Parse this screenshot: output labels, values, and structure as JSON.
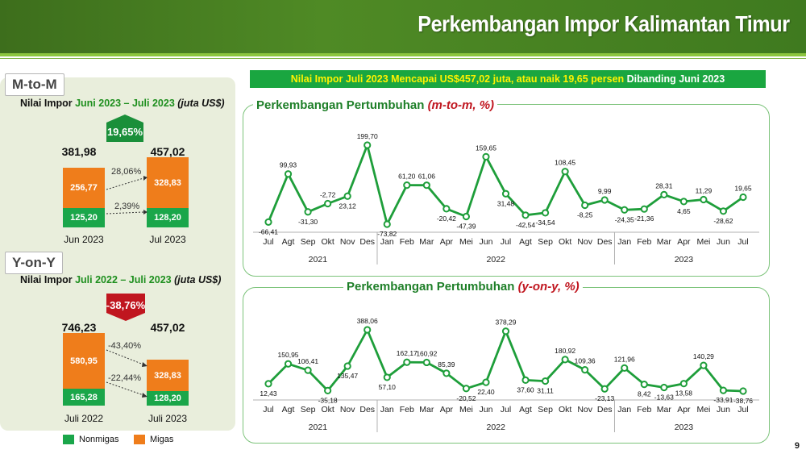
{
  "header": {
    "title": "Perkembangan Impor Kalimantan Timur"
  },
  "banner": {
    "part1": "Nilai Impor Juli 2023 Mencapai US$457,02 juta, atau naik 19,65 persen",
    "part2": " Dibanding Juni 2023"
  },
  "mtom": {
    "tag": "M-to-M",
    "subtitle_prefix": "Nilai Impor ",
    "subtitle_period": "Juni 2023 – Juli 2023",
    "subtitle_unit": " (juta US$)",
    "change": "19,65%",
    "bars": [
      {
        "label": "Jun 2023",
        "total": "381,98",
        "migas": "256,77",
        "nonmigas": "125,20"
      },
      {
        "label": "Jul 2023",
        "total": "457,02",
        "migas": "328,83",
        "nonmigas": "128,20"
      }
    ],
    "pct_migas": "28,06%",
    "pct_nonmigas": "2,39%"
  },
  "yony": {
    "tag": "Y-on-Y",
    "subtitle_prefix": "Nilai Impor ",
    "subtitle_period": "Juli 2022 – Juli 2023",
    "subtitle_unit": " (juta US$)",
    "change": "-38,76%",
    "bars": [
      {
        "label": "Juli 2022",
        "total": "746,23",
        "migas": "580,95",
        "nonmigas": "165,28"
      },
      {
        "label": "Juli 2023",
        "total": "457,02",
        "migas": "328,83",
        "nonmigas": "128,20"
      }
    ],
    "pct_migas": "-43,40%",
    "pct_nonmigas": "-22,44%"
  },
  "legend": {
    "nonmigas": "Nonmigas",
    "migas": "Migas"
  },
  "colors": {
    "migas": "#ef7d1b",
    "nonmigas": "#1aa64a",
    "line": "#1e9e3a",
    "up": "#1a8f3a",
    "down": "#c0161f"
  },
  "page_number": "9",
  "chart_data": [
    {
      "type": "line",
      "title_prefix": "Perkembangan Pertumbuhan ",
      "title_suffix": "(m-to-m, %)",
      "categories": [
        "Jul",
        "Agt",
        "Sep",
        "Okt",
        "Nov",
        "Des",
        "Jan",
        "Feb",
        "Mar",
        "Apr",
        "Mei",
        "Jun",
        "Jul",
        "Agt",
        "Sep",
        "Okt",
        "Nov",
        "Des",
        "Jan",
        "Feb",
        "Mar",
        "Apr",
        "Mei",
        "Jun",
        "Jul"
      ],
      "years": [
        {
          "label": "2021",
          "start": 0,
          "end": 5
        },
        {
          "label": "2022",
          "start": 6,
          "end": 17
        },
        {
          "label": "2023",
          "start": 18,
          "end": 24
        }
      ],
      "values": [
        -66.41,
        99.93,
        -31.3,
        -2.72,
        23.12,
        199.7,
        -73.82,
        61.2,
        61.06,
        -20.42,
        -47.39,
        159.65,
        31.48,
        -42.54,
        -34.54,
        108.45,
        -8.25,
        9.99,
        -24.35,
        -21.36,
        28.31,
        4.65,
        11.29,
        -28.62,
        19.65
      ],
      "labels": [
        "-66,41",
        "99,93",
        "-31,30",
        "-2,72",
        "23,12",
        "199,70",
        "-73,82",
        "61,20",
        "61,06",
        "-20,42",
        "-47,39",
        "159,65",
        "31,48",
        "-42,54",
        "-34,54",
        "108,45",
        "-8,25",
        "9,99",
        "-24,35",
        "-21,36",
        "28,31",
        "4,65",
        "11,29",
        "-28,62",
        "19,65"
      ]
    },
    {
      "type": "line",
      "title_prefix": "Perkembangan Pertumbuhan ",
      "title_suffix": "(y-on-y, %)",
      "categories": [
        "Jul",
        "Agt",
        "Sep",
        "Okt",
        "Nov",
        "Des",
        "Jan",
        "Feb",
        "Mar",
        "Apr",
        "Mei",
        "Jun",
        "Jul",
        "Agt",
        "Sep",
        "Okt",
        "Nov",
        "Des",
        "Jan",
        "Feb",
        "Mar",
        "Apr",
        "Mei",
        "Jun",
        "Jul"
      ],
      "years": [
        {
          "label": "2021",
          "start": 0,
          "end": 5
        },
        {
          "label": "2022",
          "start": 6,
          "end": 17
        },
        {
          "label": "2023",
          "start": 18,
          "end": 24
        }
      ],
      "values": [
        12.43,
        150.95,
        106.41,
        -35.18,
        135.47,
        388.06,
        57.1,
        162.17,
        160.92,
        85.39,
        -20.52,
        22.4,
        378.29,
        37.6,
        31.11,
        180.92,
        109.36,
        -23.13,
        121.96,
        8.42,
        -13.63,
        13.58,
        140.29,
        -33.91,
        -38.76
      ],
      "labels": [
        "12,43",
        "150,95",
        "106,41",
        "-35,18",
        "135,47",
        "388,06",
        "57,10",
        "162,17",
        "160,92",
        "85,39",
        "-20,52",
        "22,40",
        "378,29",
        "37,60",
        "31,11",
        "180,92",
        "109,36",
        "-23,13",
        "121,96",
        "8,42",
        "-13,63",
        "13,58",
        "140,29",
        "-33,91",
        "-38,76"
      ]
    }
  ]
}
